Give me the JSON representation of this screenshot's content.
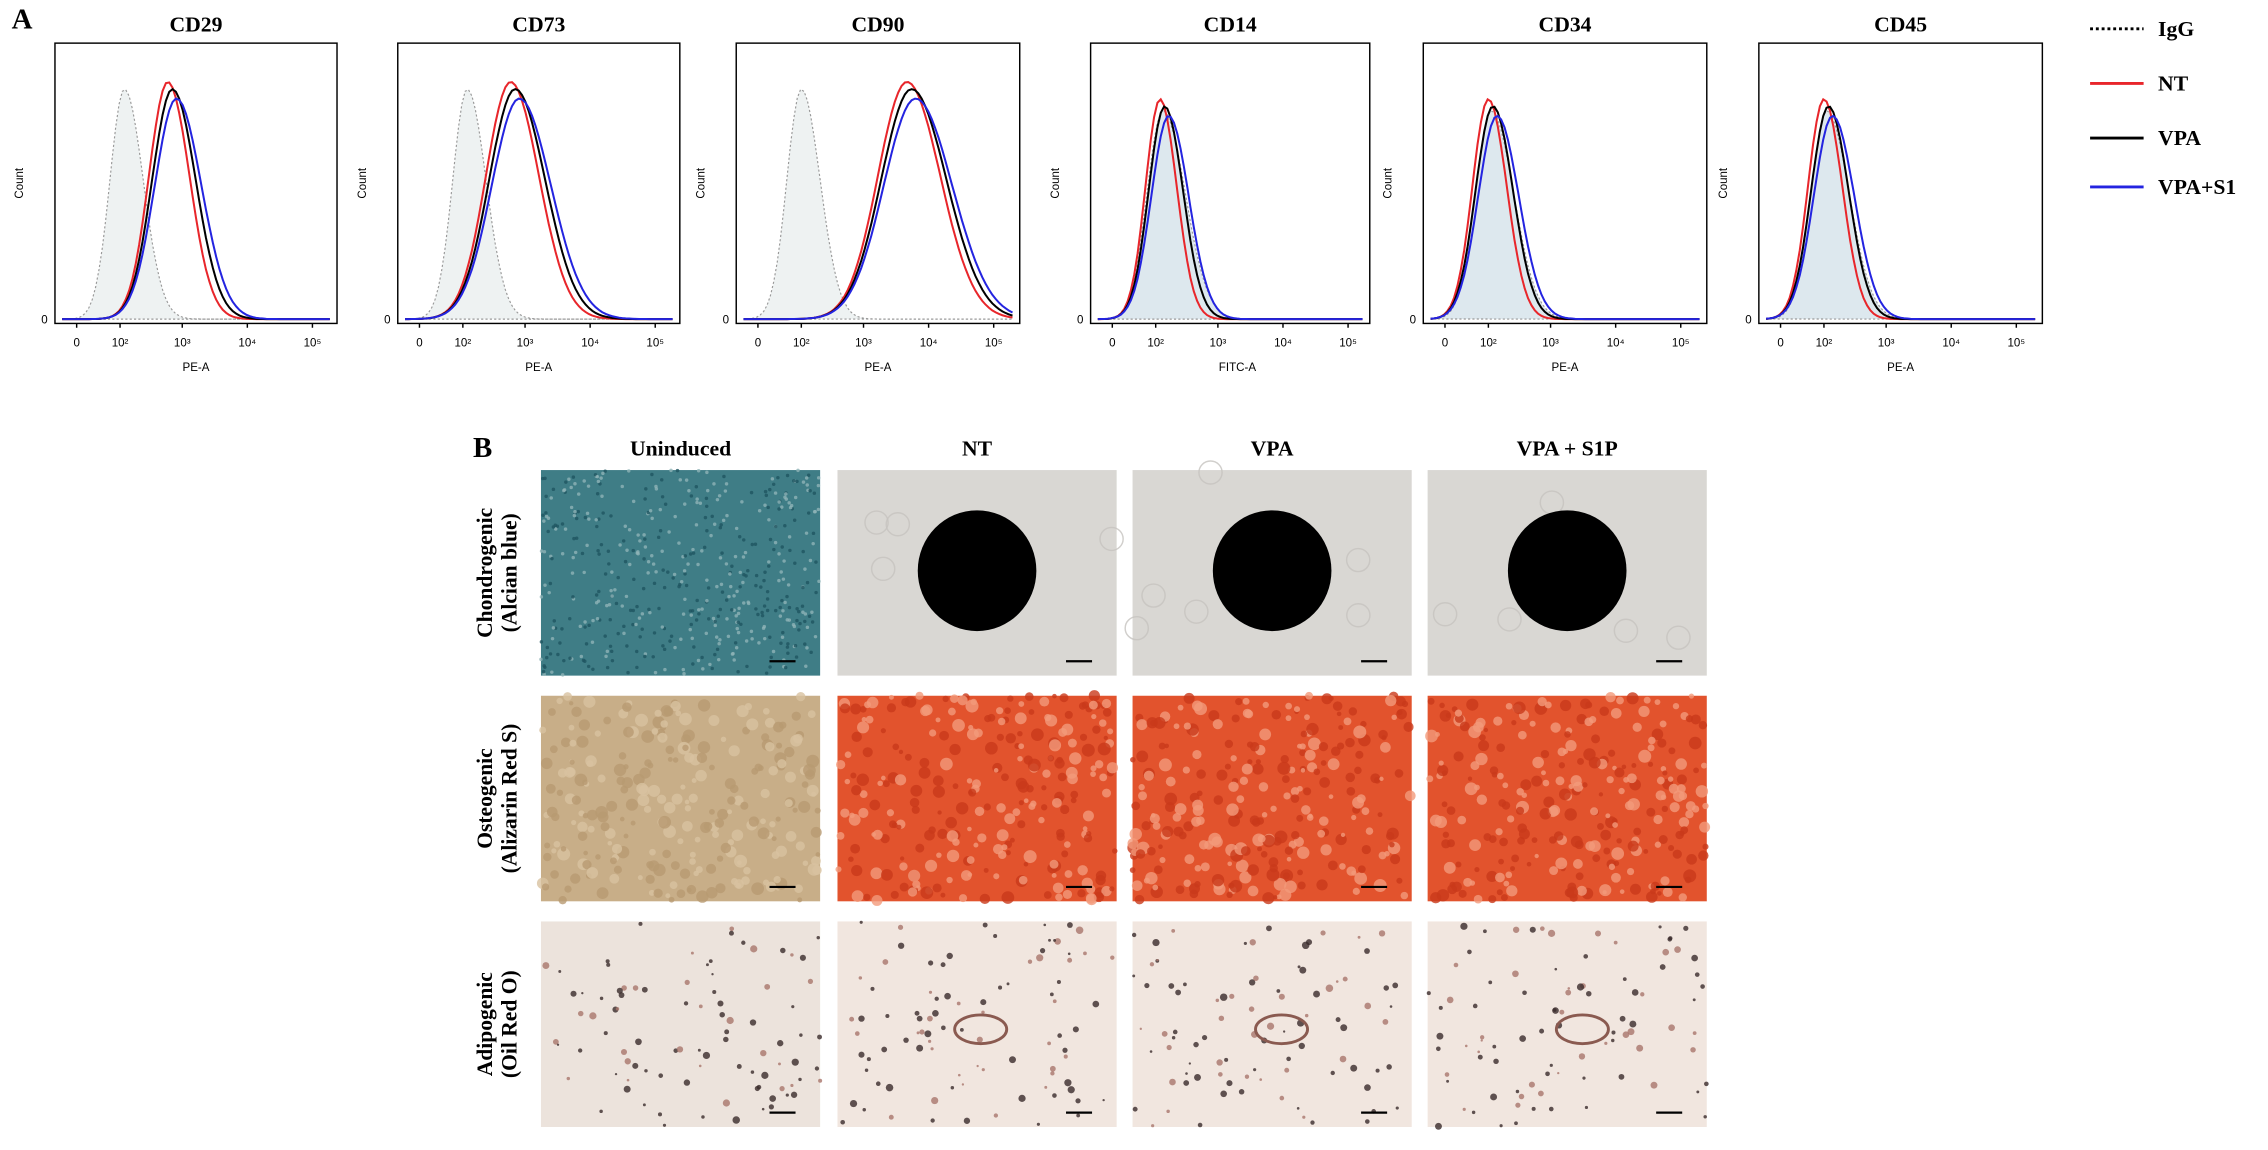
{
  "panel_a": {
    "label": "A",
    "histograms": [
      {
        "title": "CD29",
        "x_label": "PE-A",
        "y_label": "Count"
      },
      {
        "title": "CD73",
        "x_label": "PE-A",
        "y_label": "Count"
      },
      {
        "title": "CD90",
        "x_label": "PE-A",
        "y_label": "Count"
      },
      {
        "title": "CD14",
        "x_label": "FITC-A",
        "y_label": "Count"
      },
      {
        "title": "CD34",
        "x_label": "PE-A",
        "y_label": "Count"
      },
      {
        "title": "CD45",
        "x_label": "PE-A",
        "y_label": "Count"
      }
    ],
    "y_tick": "0",
    "x_ticks": [
      "0",
      "10²",
      "10³",
      "10⁴",
      "10⁵"
    ],
    "legend": [
      {
        "name": "IgG",
        "color": "#000000",
        "style": "dotted"
      },
      {
        "name": "NT",
        "color": "#e8262b",
        "style": "solid"
      },
      {
        "name": "VPA",
        "color": "#000000",
        "style": "solid"
      },
      {
        "name": "VPA+S1",
        "color": "#2424e0",
        "style": "solid"
      }
    ]
  },
  "panel_b": {
    "label": "B",
    "columns": [
      "Uninduced",
      "NT",
      "VPA",
      "VPA + S1P"
    ],
    "rows": [
      {
        "label": [
          "Chondrogenic",
          "(Alcian blue)"
        ]
      },
      {
        "label": [
          "Osteogenic",
          "(Alizarin Red S)"
        ]
      },
      {
        "label": [
          "Adipogenic",
          "(Oil Red O)"
        ]
      }
    ]
  }
}
